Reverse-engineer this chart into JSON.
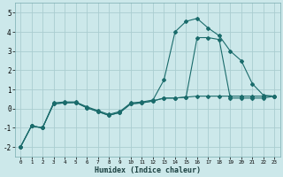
{
  "xlabel": "Humidex (Indice chaleur)",
  "bg_color": "#cce8ea",
  "grid_color": "#aacdd0",
  "line_color": "#1a6b6b",
  "xlim": [
    -0.5,
    23.5
  ],
  "ylim": [
    -2.5,
    5.5
  ],
  "yticks": [
    -2,
    -1,
    0,
    1,
    2,
    3,
    4,
    5
  ],
  "xticks": [
    0,
    1,
    2,
    3,
    4,
    5,
    6,
    7,
    8,
    9,
    10,
    11,
    12,
    13,
    14,
    15,
    16,
    17,
    18,
    19,
    20,
    21,
    22,
    23
  ],
  "series1_x": [
    0,
    1,
    2,
    3,
    4,
    5,
    6,
    7,
    8,
    9,
    10,
    11,
    12,
    13,
    14,
    15,
    16,
    17,
    18,
    19,
    20,
    21,
    22,
    23
  ],
  "series1_y": [
    -2.0,
    -0.9,
    -1.0,
    0.3,
    0.35,
    0.35,
    0.1,
    -0.1,
    -0.3,
    -0.15,
    0.3,
    0.35,
    0.45,
    1.5,
    4.0,
    4.55,
    4.7,
    4.2,
    3.8,
    3.0,
    2.5,
    1.3,
    0.7,
    0.65
  ],
  "series2_x": [
    0,
    1,
    2,
    3,
    4,
    5,
    6,
    7,
    8,
    9,
    10,
    11,
    12,
    13,
    14,
    15,
    16,
    17,
    18,
    19,
    20,
    21,
    22,
    23
  ],
  "series2_y": [
    -2.0,
    -0.9,
    -1.0,
    0.25,
    0.3,
    0.32,
    0.05,
    -0.15,
    -0.35,
    -0.2,
    0.25,
    0.3,
    0.4,
    0.55,
    0.55,
    0.6,
    3.7,
    3.7,
    3.6,
    0.55,
    0.55,
    0.55,
    0.55,
    0.65
  ],
  "series3_x": [
    0,
    1,
    2,
    3,
    4,
    5,
    6,
    7,
    8,
    9,
    10,
    11,
    12,
    13,
    14,
    15,
    16,
    17,
    18,
    19,
    20,
    21,
    22,
    23
  ],
  "series3_y": [
    -2.0,
    -0.9,
    -1.0,
    0.25,
    0.3,
    0.32,
    0.05,
    -0.15,
    -0.35,
    -0.2,
    0.25,
    0.3,
    0.4,
    0.55,
    0.55,
    0.6,
    0.65,
    0.65,
    0.65,
    0.65,
    0.65,
    0.65,
    0.65,
    0.65
  ]
}
